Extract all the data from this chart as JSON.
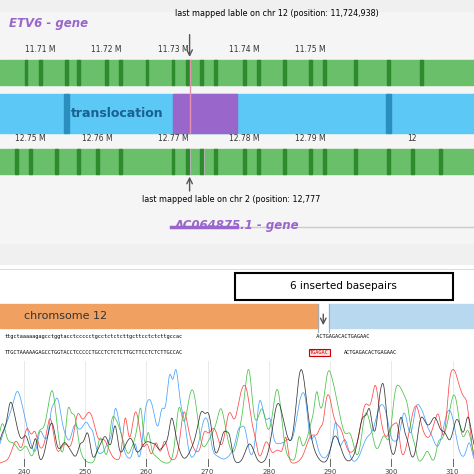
{
  "fig_width": 4.74,
  "fig_height": 4.74,
  "dpi": 100,
  "top_panel": {
    "gene_label": "ETV6 - gene",
    "gene_label_color": "#9966cc",
    "chr12_label": "last mapped lable on chr 12 (position: 11,724,938)",
    "chr2_label": "last mapped lable on chr 2 (position: 12,777",
    "ac_label": "AC064875.1 - gene",
    "ac_label_color": "#9966cc",
    "translocation_label": "translocation",
    "chr12_ticks": [
      "11.71 M",
      "11.72 M",
      "11.73 M",
      "11.74 M",
      "11.75 M"
    ],
    "chr2_ticks": [
      "12.75 M",
      "12.76 M",
      "12.77 M",
      "12.78 M",
      "12.79 M",
      "12"
    ],
    "green_bar_color": "#6abf6a",
    "blue_bar_color": "#5bc8f5",
    "purple_bar_color": "#9966cc",
    "pink_line_color": "#e8a0c0",
    "dark_green_tick_color": "#2d8a2d",
    "bg_color": "#f0f0f0",
    "panel_bg": "#e8e8e8"
  },
  "bottom_panel": {
    "chr12_bar_color": "#f0a060",
    "chr2_bar_color": "#b8d8f0",
    "chr12_label": "chromsome 12",
    "box_label": "6 inserted basepairs",
    "seq_ref_left": "ttgctaaaaagagcctggtacctccccctgcctctctcttgcttcctctcttgccac",
    "seq_ref_right": "  ACTGAGACACTGAGAAC",
    "seq_mut_left": "TTGCTAAAAAGAGCCTGGTACCTCCCCCTGCCTCTCTCTTGCTTCCTCTCTTGCCAC",
    "seq_tgagac": "TGAGAC",
    "seq_mut_right": "ACTGAGACACTGAGAAC",
    "ticks": [
      "240",
      "250",
      "260",
      "270",
      "280",
      "290",
      "300",
      "310"
    ],
    "bg_color": "#ffffff"
  }
}
